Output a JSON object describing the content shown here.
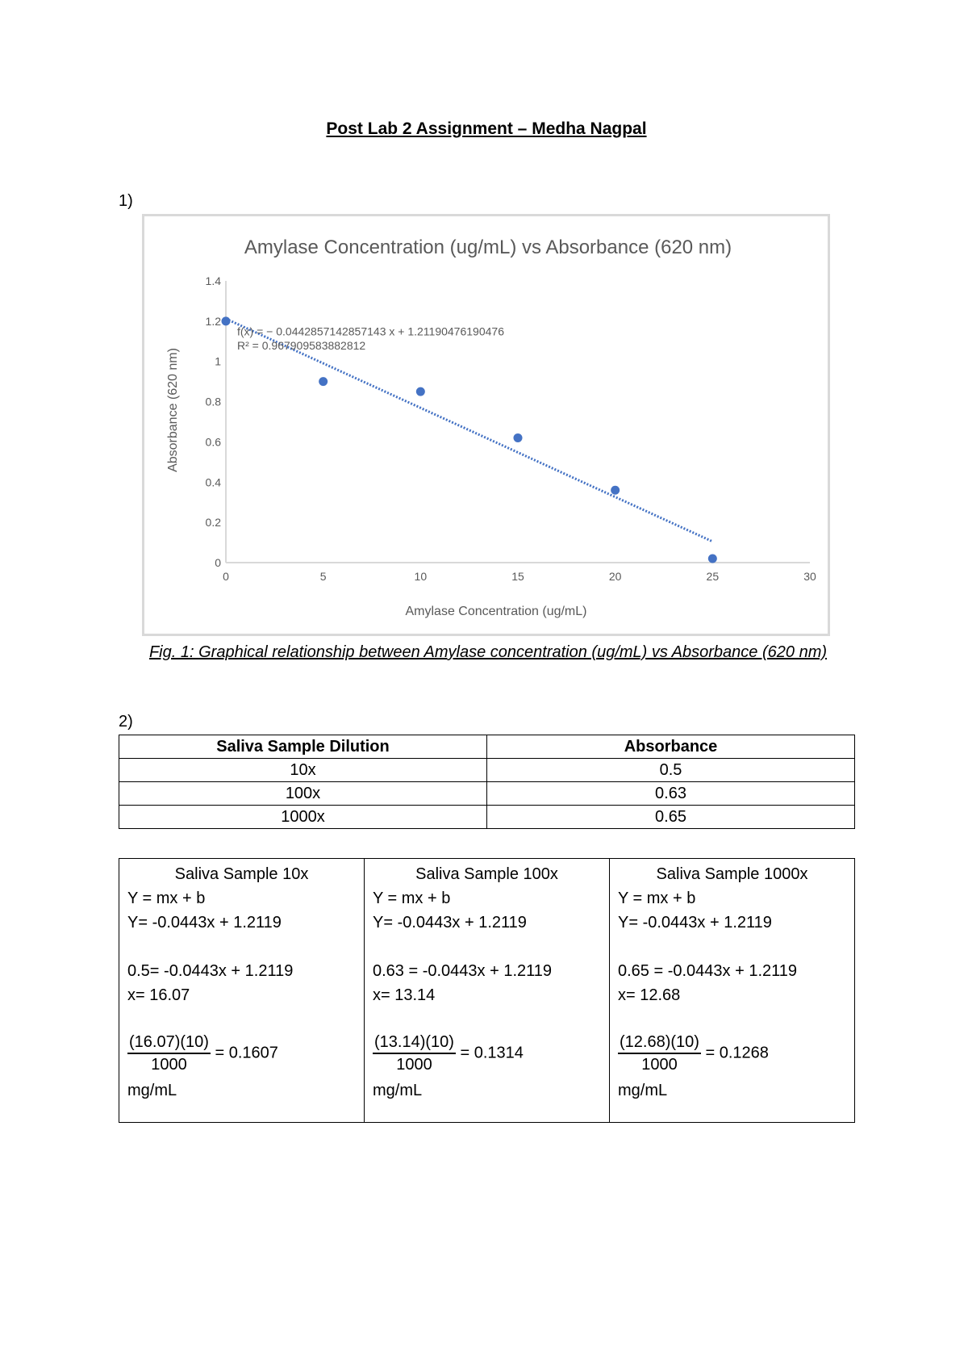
{
  "document": {
    "title": "Post Lab 2 Assignment – Medha Nagpal",
    "q1": "1)",
    "q2": "2)",
    "caption": "Fig. 1: Graphical relationship between Amylase concentration (ug/mL) vs Absorbance (620 nm)"
  },
  "chart_data": {
    "type": "scatter",
    "title": "Amylase Concentration (ug/mL) vs Absorbance (620 nm)",
    "xlabel": "Amylase Concentration (ug/mL)",
    "ylabel": "Absorbance (620 nm)",
    "xlim": [
      0,
      30
    ],
    "ylim": [
      0,
      1.4
    ],
    "xticks": [
      "0",
      "5",
      "10",
      "15",
      "20",
      "25",
      "30"
    ],
    "yticks": [
      "0",
      "0.2",
      "0.4",
      "0.6",
      "0.8",
      "1",
      "1.2",
      "1.4"
    ],
    "x": [
      0,
      5,
      10,
      15,
      20,
      25
    ],
    "y": [
      1.2,
      0.9,
      0.85,
      0.62,
      0.36,
      0.02
    ],
    "trendline": {
      "type": "linear",
      "slope": -0.0442857142857143,
      "intercept": 1.21190476190476,
      "style": "dotted",
      "equation": "f(x) = − 0.0442857142857143 x + 1.21190476190476",
      "r2": "R² = 0.967909583882812"
    },
    "grid": false,
    "color": "#4472c4"
  },
  "table1": {
    "headers": [
      "Saliva Sample Dilution",
      "Absorbance"
    ],
    "rows": [
      [
        "10x",
        "0.5"
      ],
      [
        "100x",
        "0.63"
      ],
      [
        "1000x",
        "0.65"
      ]
    ]
  },
  "table2": [
    {
      "title": "Saliva Sample 10x",
      "l1": "Y = mx + b",
      "l2": "Y= -0.0443x + 1.2119",
      "l3": "0.5= -0.0443x + 1.2119",
      "l4": "x= 16.07",
      "num": "(16.07)(10)",
      "den": "1000",
      "res": "= 0.1607",
      "unit": "mg/mL"
    },
    {
      "title": "Saliva Sample 100x",
      "l1": "Y = mx + b",
      "l2": "Y= -0.0443x + 1.2119",
      "l3": "0.63 = -0.0443x + 1.2119",
      "l4": "x= 13.14",
      "num": "(13.14)(10)",
      "den": "1000",
      "res": "= 0.1314",
      "unit": "mg/mL"
    },
    {
      "title": "Saliva Sample 1000x",
      "l1": "Y = mx + b",
      "l2": "Y= -0.0443x + 1.2119",
      "l3": "0.65 = -0.0443x + 1.2119",
      "l4": "x= 12.68",
      "num": "(12.68)(10)",
      "den": "1000",
      "res": "= 0.1268",
      "unit": "mg/mL"
    }
  ]
}
